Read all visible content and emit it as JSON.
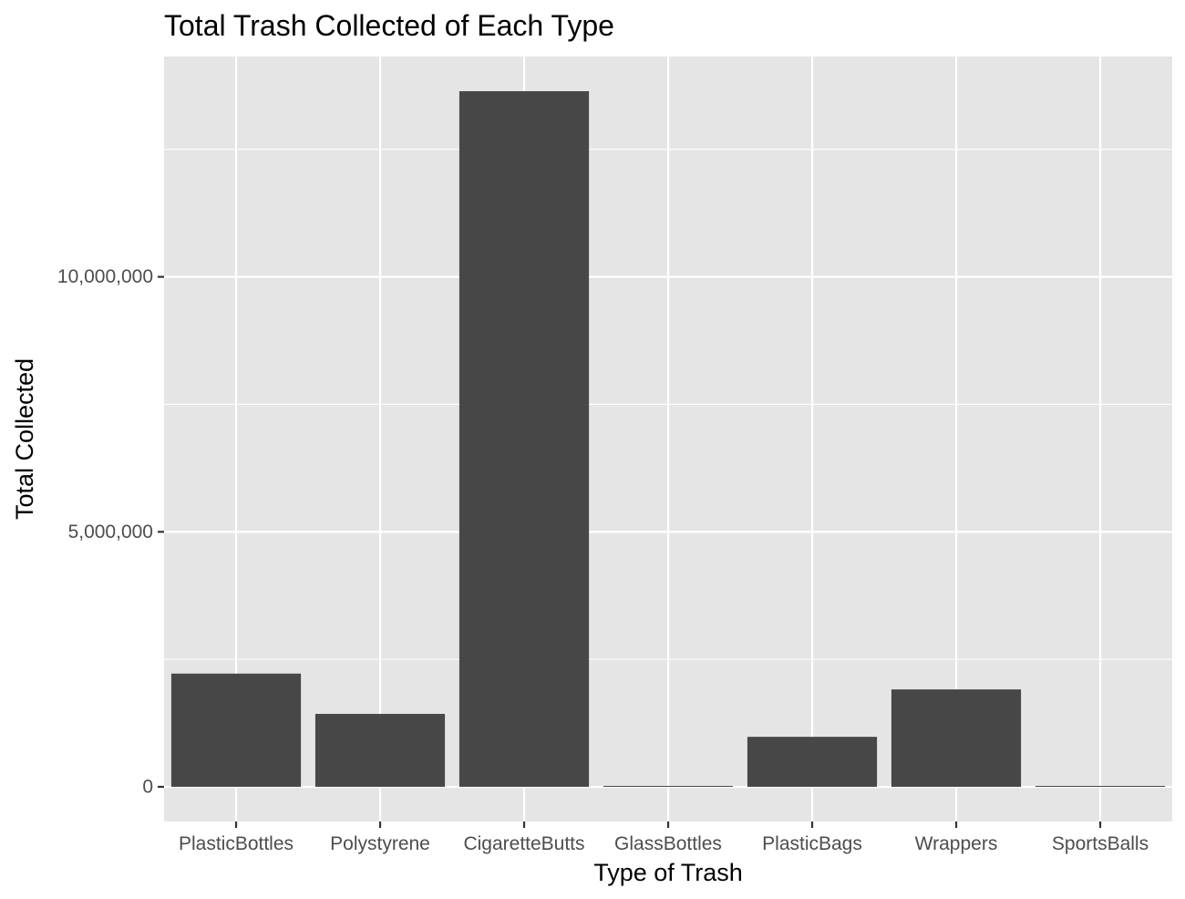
{
  "chart_data": {
    "type": "bar",
    "title": "Total Trash Collected of Each Type",
    "xlabel": "Type of Trash",
    "ylabel": "Total Collected",
    "categories": [
      "PlasticBottles",
      "Polystyrene",
      "CigaretteButts",
      "GlassBottles",
      "PlasticBags",
      "Wrappers",
      "SportsBalls"
    ],
    "values": [
      2220000,
      1430000,
      13640000,
      14000,
      980000,
      1910000,
      12000
    ],
    "yticks": [
      0,
      5000000,
      10000000
    ],
    "ytick_labels": [
      "0",
      "5,000,000",
      "10,000,000"
    ],
    "ylim": [
      -680000,
      14320000
    ],
    "grid": true,
    "legend": "none",
    "colors": {
      "bar": "#474747",
      "panel": "#e5e5e5",
      "grid": "#ffffff",
      "tick": "#333333",
      "tick_label": "#4d4d4d",
      "text": "#000000"
    }
  }
}
